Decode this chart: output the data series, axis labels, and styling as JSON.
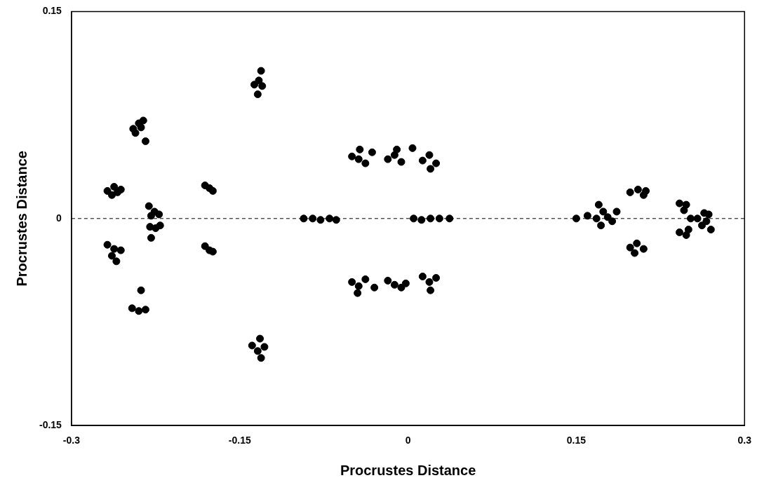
{
  "chart_data": {
    "type": "scatter",
    "xlabel": "Procrustes Distance",
    "ylabel": "Procrustes Distance",
    "xlim": [
      -0.3,
      0.3
    ],
    "xticks": [
      -0.3,
      -0.15,
      0,
      0.15,
      0.3
    ],
    "ylim": [
      -0.15,
      0.15
    ],
    "yticks": [
      -0.15,
      0,
      0.15
    ],
    "grid": false,
    "legend": false,
    "marker": "circle",
    "ref_lines": [
      {
        "axis": "y",
        "value": 0,
        "line_style": "dashed",
        "color": "#000000"
      }
    ],
    "series": [
      {
        "color": "#000000",
        "x": [
          -0.268,
          -0.262,
          -0.256,
          -0.264,
          -0.259,
          -0.245,
          -0.24,
          -0.236,
          -0.243,
          -0.238,
          -0.234,
          -0.231,
          -0.226,
          -0.222,
          -0.229,
          -0.23,
          -0.225,
          -0.221,
          -0.229,
          -0.268,
          -0.262,
          -0.256,
          -0.264,
          -0.26,
          -0.246,
          -0.24,
          -0.234,
          -0.238,
          -0.181,
          -0.177,
          -0.174,
          -0.181,
          -0.177,
          -0.174,
          -0.137,
          -0.133,
          -0.13,
          -0.134,
          -0.131,
          -0.139,
          -0.134,
          -0.128,
          -0.132,
          -0.131,
          -0.093,
          -0.085,
          -0.078,
          -0.07,
          -0.064,
          -0.05,
          -0.044,
          -0.038,
          -0.043,
          -0.032,
          -0.018,
          -0.012,
          -0.006,
          -0.01,
          0.004,
          0.013,
          0.019,
          0.025,
          0.02,
          -0.05,
          -0.044,
          -0.038,
          -0.045,
          -0.03,
          -0.018,
          -0.012,
          -0.006,
          -0.002,
          0.013,
          0.019,
          0.025,
          0.02,
          0.005,
          0.012,
          0.02,
          0.028,
          0.037,
          0.15,
          0.16,
          0.168,
          0.174,
          0.172,
          0.178,
          0.17,
          0.182,
          0.186,
          0.198,
          0.205,
          0.212,
          0.21,
          0.198,
          0.204,
          0.21,
          0.202,
          0.242,
          0.248,
          0.246,
          0.242,
          0.248,
          0.25,
          0.252,
          0.258,
          0.264,
          0.266,
          0.268,
          0.27,
          0.262
        ],
        "values": [
          0.02,
          0.023,
          0.021,
          0.017,
          0.019,
          0.065,
          0.069,
          0.071,
          0.062,
          0.066,
          0.056,
          0.009,
          0.005,
          0.003,
          0.002,
          -0.006,
          -0.007,
          -0.005,
          -0.014,
          -0.019,
          -0.022,
          -0.023,
          -0.027,
          -0.031,
          -0.065,
          -0.067,
          -0.066,
          -0.052,
          0.024,
          0.022,
          0.02,
          -0.02,
          -0.023,
          -0.024,
          0.097,
          0.1,
          0.096,
          0.09,
          0.107,
          -0.092,
          -0.096,
          -0.093,
          -0.087,
          -0.101,
          0,
          0,
          -0.001,
          0,
          -0.001,
          0.045,
          0.043,
          0.04,
          0.05,
          0.048,
          0.043,
          0.046,
          0.041,
          0.05,
          0.051,
          0.042,
          0.046,
          0.04,
          0.036,
          -0.046,
          -0.049,
          -0.044,
          -0.054,
          -0.05,
          -0.045,
          -0.048,
          -0.05,
          -0.047,
          -0.042,
          -0.046,
          -0.043,
          -0.052,
          0,
          -0.001,
          0,
          0,
          0,
          0,
          0.002,
          0,
          0.005,
          -0.005,
          0.001,
          0.01,
          -0.002,
          0.005,
          0.019,
          0.021,
          0.02,
          0.017,
          -0.021,
          -0.018,
          -0.022,
          -0.025,
          0.011,
          0.01,
          0.006,
          -0.01,
          -0.012,
          -0.008,
          0,
          0,
          0.004,
          -0.002,
          0.003,
          -0.008,
          -0.005
        ]
      }
    ]
  }
}
